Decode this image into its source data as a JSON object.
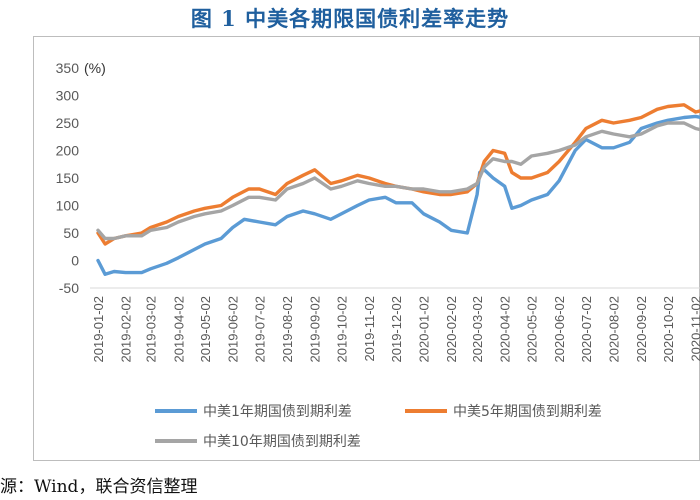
{
  "title": "图 1  中美各期限国债利差率走势",
  "source": "源：Wind，联合资信整理",
  "chart_data": {
    "type": "line",
    "y_unit": "(%)",
    "ylim": [
      -50,
      350
    ],
    "yticks": [
      -50,
      0,
      50,
      100,
      150,
      200,
      250,
      300,
      350
    ],
    "grid": false,
    "legend_position": "bottom",
    "x_ticks": [
      "2019-01-02",
      "2019-02-02",
      "2019-03-02",
      "2019-04-02",
      "2019-05-02",
      "2019-06-02",
      "2019-07-02",
      "2019-08-02",
      "2019-09-02",
      "2019-10-02",
      "2019-11-02",
      "2019-12-02",
      "2020-01-02",
      "2020-02-02",
      "2020-03-02",
      "2020-04-02",
      "2020-05-02",
      "2020-06-02",
      "2020-07-02",
      "2020-08-02",
      "2020-09-02",
      "2020-10-02",
      "2020-11-02"
    ],
    "series": [
      {
        "name": "中美1年期国债到期利差",
        "color": "#5b9bd5",
        "x": [
          "2019-01-02",
          "2019-01-10",
          "2019-01-20",
          "2019-02-02",
          "2019-02-20",
          "2019-03-02",
          "2019-03-20",
          "2019-04-02",
          "2019-04-20",
          "2019-05-02",
          "2019-05-20",
          "2019-06-02",
          "2019-06-15",
          "2019-07-02",
          "2019-07-20",
          "2019-08-02",
          "2019-08-20",
          "2019-09-02",
          "2019-09-20",
          "2019-10-02",
          "2019-10-20",
          "2019-11-02",
          "2019-11-20",
          "2019-12-02",
          "2019-12-20",
          "2020-01-02",
          "2020-01-20",
          "2020-02-02",
          "2020-02-20",
          "2020-03-02",
          "2020-03-05",
          "2020-03-10",
          "2020-03-20",
          "2020-04-02",
          "2020-04-10",
          "2020-04-20",
          "2020-05-02",
          "2020-05-20",
          "2020-06-02",
          "2020-06-20",
          "2020-07-02",
          "2020-07-20",
          "2020-08-02",
          "2020-08-20",
          "2020-09-02",
          "2020-09-20",
          "2020-10-02",
          "2020-10-20",
          "2020-11-02",
          "2020-11-15"
        ],
        "values": [
          0,
          -25,
          -20,
          -22,
          -22,
          -15,
          -5,
          5,
          20,
          30,
          40,
          60,
          75,
          70,
          65,
          80,
          90,
          85,
          75,
          85,
          100,
          110,
          115,
          105,
          105,
          85,
          70,
          55,
          50,
          120,
          160,
          165,
          150,
          135,
          95,
          100,
          110,
          120,
          145,
          200,
          220,
          205,
          205,
          215,
          240,
          250,
          255,
          260,
          262,
          258
        ]
      },
      {
        "name": "中美5年期国债到期利差",
        "color": "#ed7d31",
        "x": [
          "2019-01-02",
          "2019-01-10",
          "2019-01-20",
          "2019-02-02",
          "2019-02-20",
          "2019-03-02",
          "2019-03-20",
          "2019-04-02",
          "2019-04-20",
          "2019-05-02",
          "2019-05-20",
          "2019-06-02",
          "2019-06-20",
          "2019-07-02",
          "2019-07-20",
          "2019-08-02",
          "2019-08-20",
          "2019-09-02",
          "2019-09-20",
          "2019-10-02",
          "2019-10-20",
          "2019-11-02",
          "2019-11-20",
          "2019-12-02",
          "2019-12-20",
          "2020-01-02",
          "2020-01-20",
          "2020-02-02",
          "2020-02-20",
          "2020-03-02",
          "2020-03-10",
          "2020-03-20",
          "2020-04-02",
          "2020-04-10",
          "2020-04-20",
          "2020-05-02",
          "2020-05-20",
          "2020-06-02",
          "2020-06-20",
          "2020-07-02",
          "2020-07-20",
          "2020-08-02",
          "2020-08-20",
          "2020-09-02",
          "2020-09-20",
          "2020-10-02",
          "2020-10-20",
          "2020-11-02",
          "2020-11-15"
        ],
        "values": [
          50,
          30,
          40,
          45,
          50,
          60,
          70,
          80,
          90,
          95,
          100,
          115,
          130,
          130,
          120,
          140,
          155,
          165,
          140,
          145,
          155,
          150,
          140,
          135,
          130,
          125,
          120,
          120,
          125,
          140,
          180,
          200,
          195,
          160,
          150,
          150,
          160,
          180,
          215,
          240,
          255,
          250,
          255,
          260,
          275,
          280,
          283,
          270,
          275
        ]
      },
      {
        "name": "中美10年期国债到期利差",
        "color": "#a5a5a5",
        "x": [
          "2019-01-02",
          "2019-01-10",
          "2019-01-20",
          "2019-02-02",
          "2019-02-20",
          "2019-03-02",
          "2019-03-20",
          "2019-04-02",
          "2019-04-20",
          "2019-05-02",
          "2019-05-20",
          "2019-06-02",
          "2019-06-20",
          "2019-07-02",
          "2019-07-20",
          "2019-08-02",
          "2019-08-20",
          "2019-09-02",
          "2019-09-20",
          "2019-10-02",
          "2019-10-20",
          "2019-11-02",
          "2019-11-20",
          "2019-12-02",
          "2019-12-20",
          "2020-01-02",
          "2020-01-20",
          "2020-02-02",
          "2020-02-20",
          "2020-03-02",
          "2020-03-10",
          "2020-03-20",
          "2020-04-02",
          "2020-04-10",
          "2020-04-20",
          "2020-05-02",
          "2020-05-20",
          "2020-06-02",
          "2020-06-20",
          "2020-07-02",
          "2020-07-20",
          "2020-08-02",
          "2020-08-20",
          "2020-09-02",
          "2020-09-20",
          "2020-10-02",
          "2020-10-20",
          "2020-11-02",
          "2020-11-15"
        ],
        "values": [
          55,
          40,
          40,
          45,
          45,
          55,
          60,
          70,
          80,
          85,
          90,
          100,
          115,
          115,
          110,
          130,
          140,
          150,
          130,
          135,
          145,
          140,
          135,
          135,
          130,
          130,
          125,
          125,
          130,
          140,
          170,
          185,
          180,
          180,
          175,
          190,
          195,
          200,
          210,
          225,
          235,
          230,
          225,
          230,
          245,
          250,
          250,
          240,
          235
        ]
      }
    ]
  }
}
